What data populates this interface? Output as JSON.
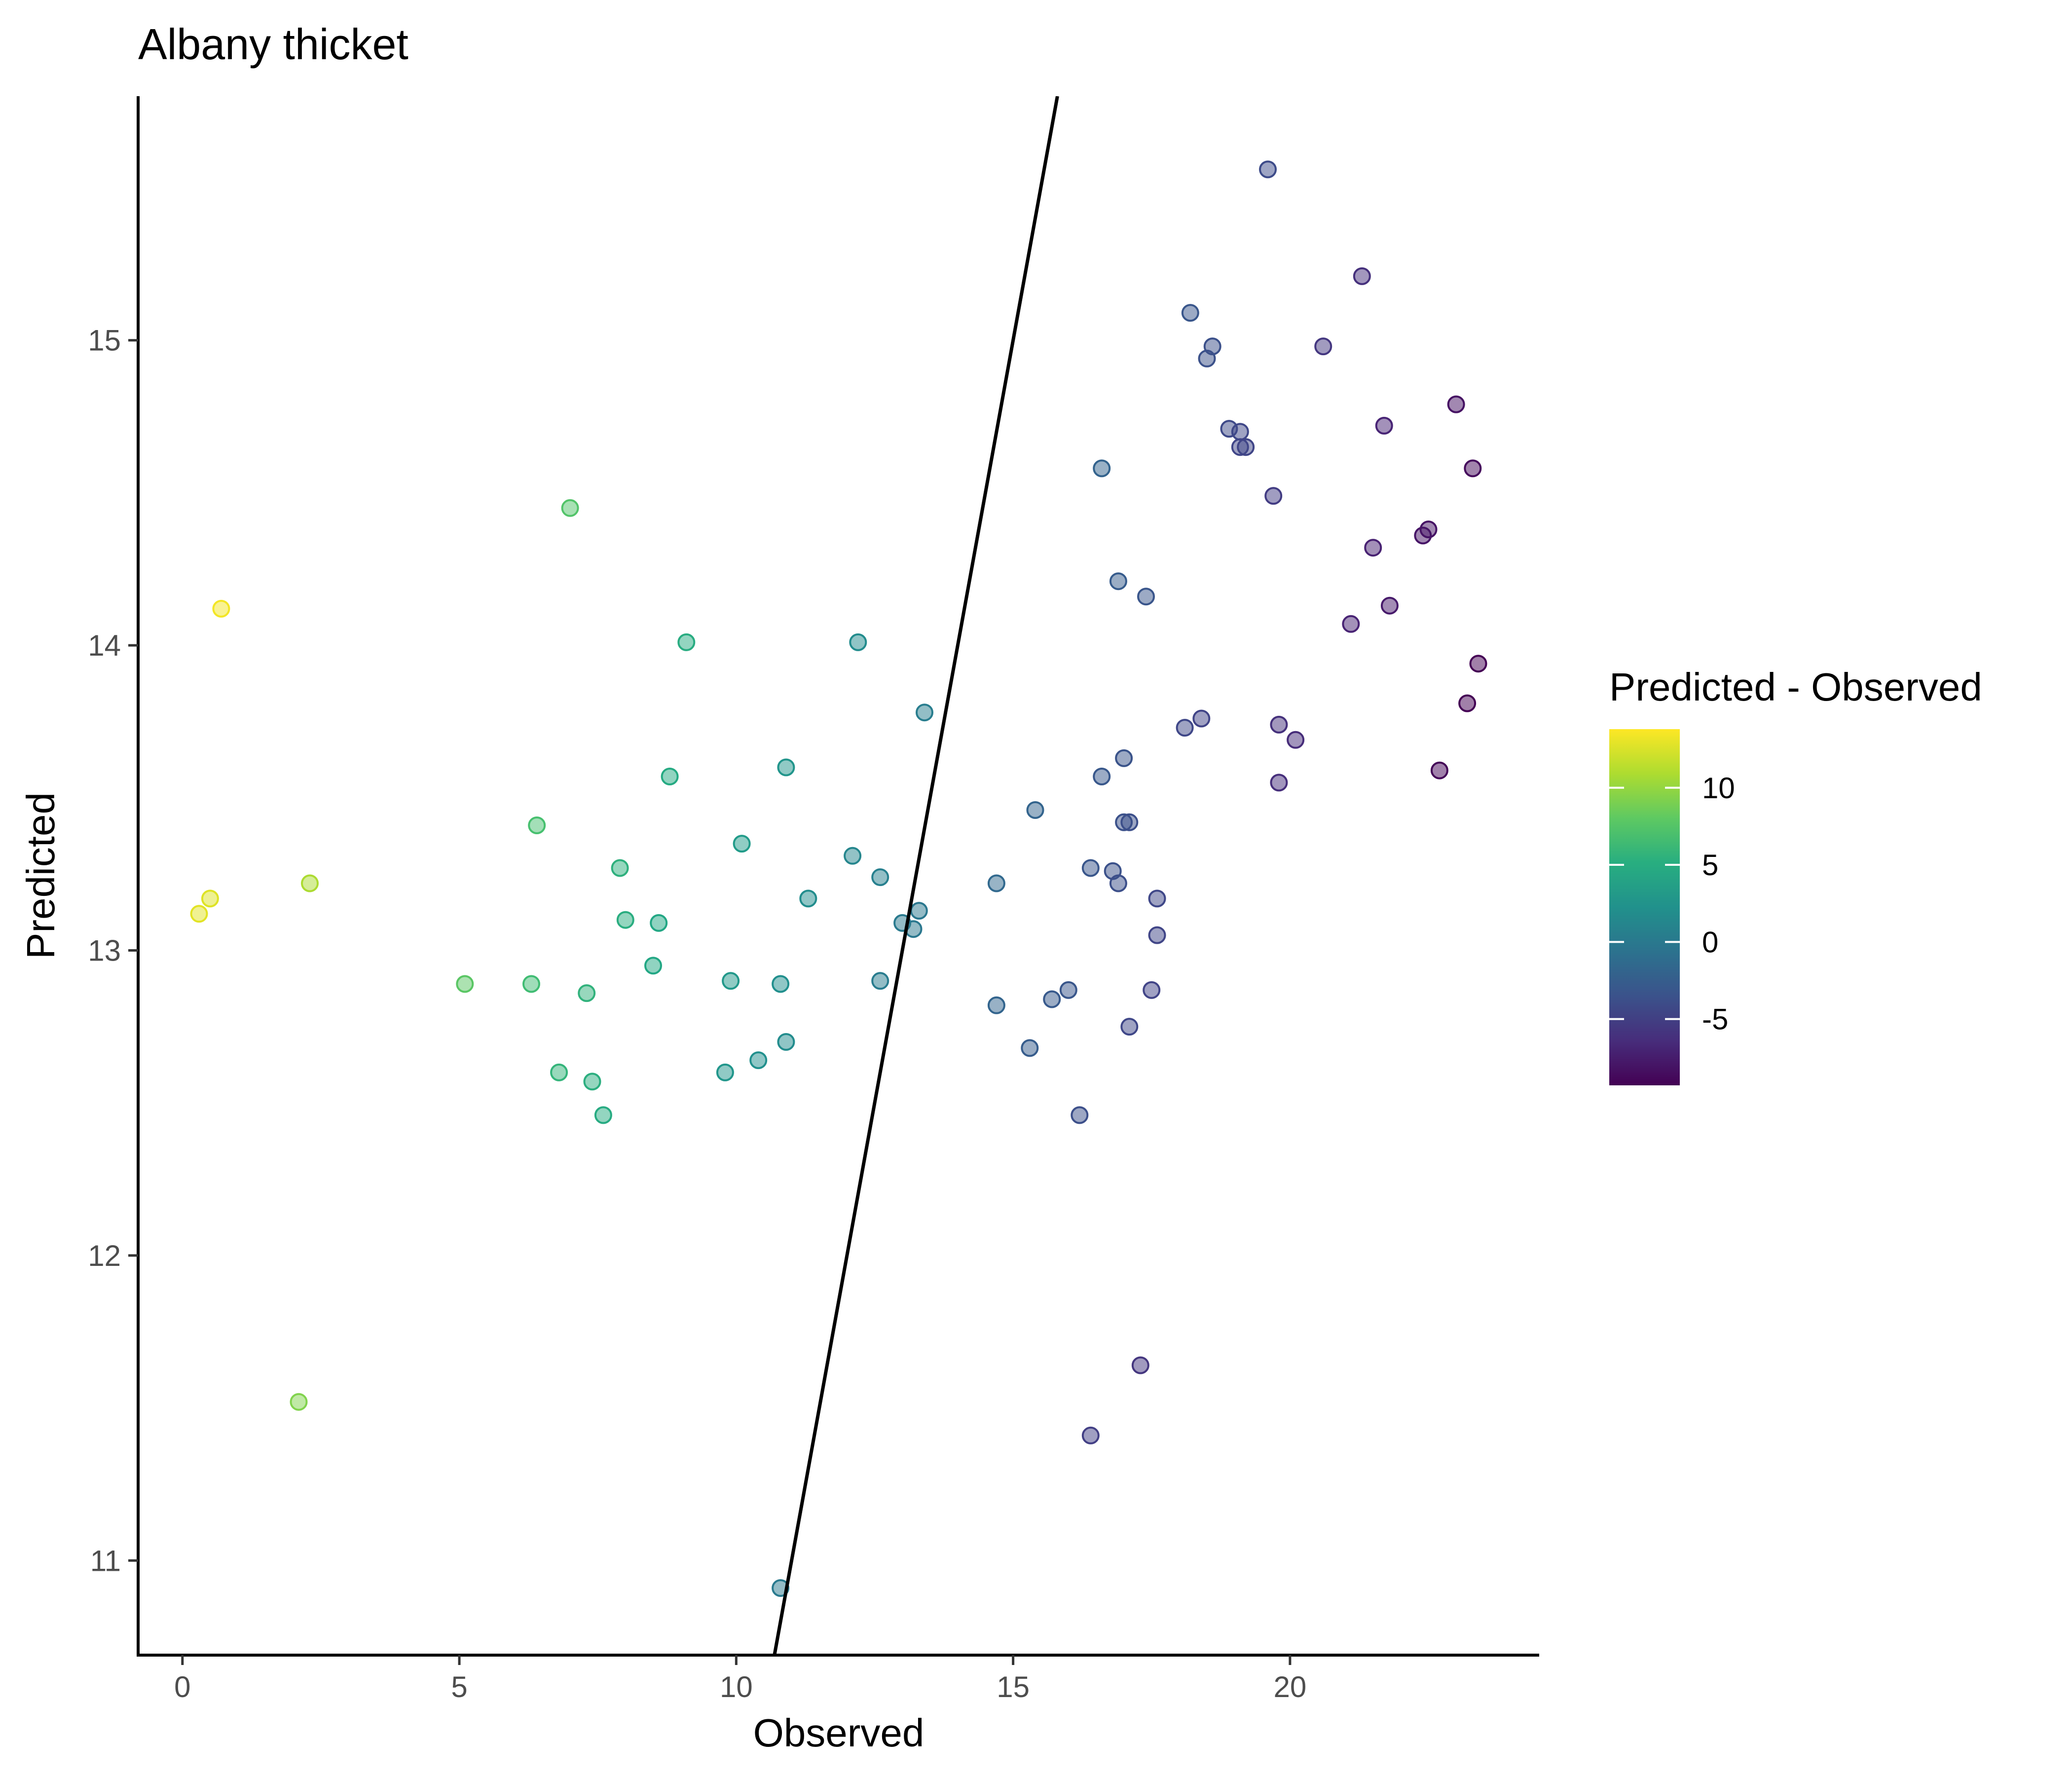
{
  "chart_data": {
    "type": "scatter",
    "title": "Albany thicket",
    "xlabel": "Observed",
    "ylabel": "Predicted",
    "xlim": [
      -0.8,
      24.5
    ],
    "ylim": [
      10.69,
      15.8
    ],
    "x_ticks": [
      0,
      5,
      10,
      15,
      20
    ],
    "y_ticks": [
      11,
      12,
      13,
      14,
      15
    ],
    "grid": false,
    "reference_line": {
      "slope": 1,
      "intercept": 0
    },
    "legend": {
      "title": "Predicted - Observed",
      "placement": "right",
      "range": [
        -9.3,
        13.8
      ],
      "ticks": [
        10,
        5,
        0,
        -5
      ],
      "colormap": "viridis"
    },
    "points": [
      {
        "x": 0.3,
        "y": 13.12
      },
      {
        "x": 0.5,
        "y": 13.17
      },
      {
        "x": 0.7,
        "y": 14.12
      },
      {
        "x": 2.1,
        "y": 11.52
      },
      {
        "x": 2.3,
        "y": 13.22
      },
      {
        "x": 5.1,
        "y": 12.89
      },
      {
        "x": 6.3,
        "y": 12.89
      },
      {
        "x": 6.4,
        "y": 13.41
      },
      {
        "x": 6.8,
        "y": 12.6
      },
      {
        "x": 7.0,
        "y": 14.45
      },
      {
        "x": 7.3,
        "y": 12.86
      },
      {
        "x": 7.4,
        "y": 12.57
      },
      {
        "x": 7.6,
        "y": 12.46
      },
      {
        "x": 7.9,
        "y": 13.27
      },
      {
        "x": 8.0,
        "y": 13.1
      },
      {
        "x": 8.5,
        "y": 12.95
      },
      {
        "x": 8.6,
        "y": 13.09
      },
      {
        "x": 8.8,
        "y": 13.57
      },
      {
        "x": 9.1,
        "y": 14.01
      },
      {
        "x": 9.8,
        "y": 12.6
      },
      {
        "x": 9.9,
        "y": 12.9
      },
      {
        "x": 10.1,
        "y": 13.35
      },
      {
        "x": 10.4,
        "y": 12.64
      },
      {
        "x": 10.8,
        "y": 10.91
      },
      {
        "x": 10.8,
        "y": 12.89
      },
      {
        "x": 10.9,
        "y": 13.6
      },
      {
        "x": 10.9,
        "y": 12.7
      },
      {
        "x": 11.3,
        "y": 13.17
      },
      {
        "x": 12.1,
        "y": 13.31
      },
      {
        "x": 12.2,
        "y": 14.01
      },
      {
        "x": 12.6,
        "y": 13.24
      },
      {
        "x": 12.6,
        "y": 12.9
      },
      {
        "x": 13.0,
        "y": 13.09
      },
      {
        "x": 13.2,
        "y": 13.07
      },
      {
        "x": 13.3,
        "y": 13.13
      },
      {
        "x": 13.4,
        "y": 13.78
      },
      {
        "x": 14.7,
        "y": 13.22
      },
      {
        "x": 14.7,
        "y": 12.82
      },
      {
        "x": 15.3,
        "y": 12.68
      },
      {
        "x": 15.4,
        "y": 13.46
      },
      {
        "x": 15.7,
        "y": 12.84
      },
      {
        "x": 16.0,
        "y": 12.87
      },
      {
        "x": 16.2,
        "y": 12.46
      },
      {
        "x": 16.4,
        "y": 13.27
      },
      {
        "x": 16.4,
        "y": 11.41
      },
      {
        "x": 16.6,
        "y": 14.58
      },
      {
        "x": 16.6,
        "y": 13.57
      },
      {
        "x": 16.8,
        "y": 13.26
      },
      {
        "x": 16.9,
        "y": 13.22
      },
      {
        "x": 16.9,
        "y": 14.21
      },
      {
        "x": 17.0,
        "y": 13.63
      },
      {
        "x": 17.0,
        "y": 13.42
      },
      {
        "x": 17.1,
        "y": 13.42
      },
      {
        "x": 17.1,
        "y": 12.75
      },
      {
        "x": 17.3,
        "y": 11.64
      },
      {
        "x": 17.4,
        "y": 14.16
      },
      {
        "x": 17.5,
        "y": 12.87
      },
      {
        "x": 17.6,
        "y": 13.05
      },
      {
        "x": 17.6,
        "y": 13.17
      },
      {
        "x": 18.1,
        "y": 13.73
      },
      {
        "x": 18.2,
        "y": 15.09
      },
      {
        "x": 18.4,
        "y": 13.76
      },
      {
        "x": 18.5,
        "y": 14.94
      },
      {
        "x": 18.6,
        "y": 14.98
      },
      {
        "x": 18.9,
        "y": 14.71
      },
      {
        "x": 19.1,
        "y": 14.7
      },
      {
        "x": 19.1,
        "y": 14.65
      },
      {
        "x": 19.2,
        "y": 14.65
      },
      {
        "x": 19.6,
        "y": 15.56
      },
      {
        "x": 19.7,
        "y": 14.49
      },
      {
        "x": 19.8,
        "y": 13.74
      },
      {
        "x": 19.8,
        "y": 13.55
      },
      {
        "x": 20.1,
        "y": 13.69
      },
      {
        "x": 20.6,
        "y": 14.98
      },
      {
        "x": 21.1,
        "y": 14.07
      },
      {
        "x": 21.3,
        "y": 15.21
      },
      {
        "x": 21.5,
        "y": 14.32
      },
      {
        "x": 21.7,
        "y": 14.72
      },
      {
        "x": 21.8,
        "y": 14.13
      },
      {
        "x": 22.4,
        "y": 14.36
      },
      {
        "x": 22.5,
        "y": 14.38
      },
      {
        "x": 22.7,
        "y": 13.59
      },
      {
        "x": 23.0,
        "y": 14.79
      },
      {
        "x": 23.2,
        "y": 13.81
      },
      {
        "x": 23.3,
        "y": 14.58
      },
      {
        "x": 23.4,
        "y": 13.94
      }
    ]
  }
}
